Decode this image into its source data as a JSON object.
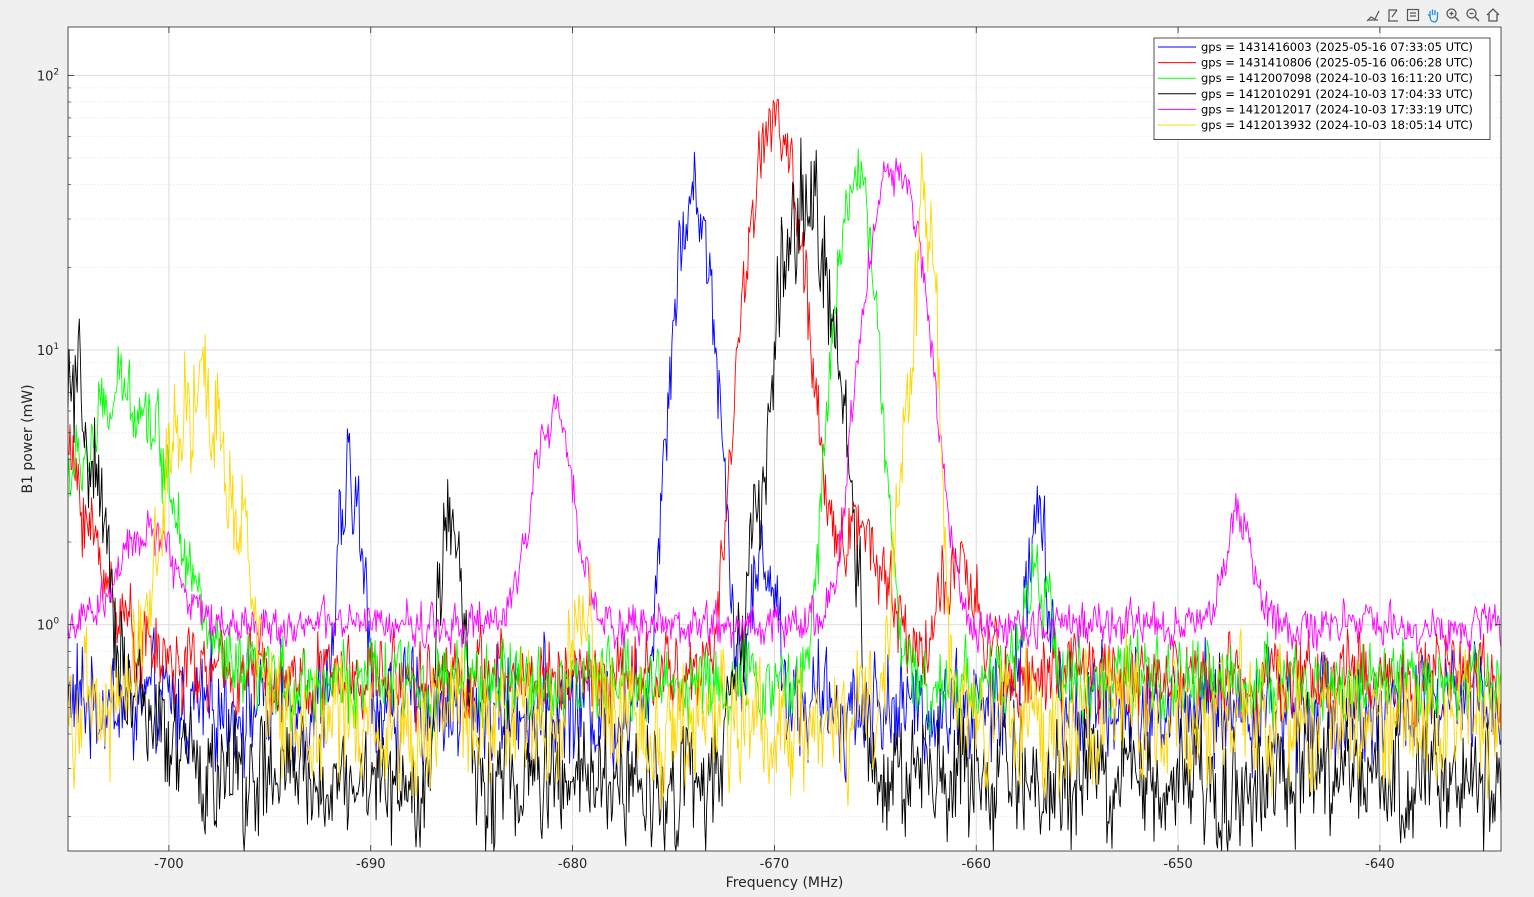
{
  "toolbar": {
    "icons": [
      "brush-icon",
      "datatip-icon",
      "legend-icon",
      "pan-hand-icon",
      "zoom-in-icon",
      "zoom-out-icon",
      "home-icon"
    ]
  },
  "chart_data": {
    "type": "line",
    "xlabel": "Frequency (MHz)",
    "ylabel": "B1 power (mW)",
    "xlim": [
      -705,
      -634
    ],
    "ylim": [
      0.15,
      150
    ],
    "yscale": "log",
    "grid": true,
    "minor_grid_y": true,
    "legend_placement": "top-right",
    "xticks": [
      -700,
      -690,
      -680,
      -670,
      -660,
      -650,
      -640
    ],
    "xtick_labels": [
      "-700",
      "-690",
      "-680",
      "-670",
      "-660",
      "-650",
      "-640"
    ],
    "yticks": [
      1,
      10,
      100
    ],
    "ytick_labels": [
      {
        "base": "10",
        "exp": "0"
      },
      {
        "base": "10",
        "exp": "1"
      },
      {
        "base": "10",
        "exp": "2"
      }
    ],
    "series": [
      {
        "name": "gps = 1431416003 (2025-05-16 07:33:05 UTC)",
        "color": "#0000ff",
        "baseline": 0.5,
        "noise": 0.3,
        "peaks": [
          [
            -691,
            3.5,
            0.45
          ],
          [
            -674,
            40,
            0.7
          ],
          [
            -670.5,
            2.0,
            0.5
          ],
          [
            -657,
            2.5,
            0.45
          ]
        ],
        "start": 0.55
      },
      {
        "name": "gps = 1431410806 (2025-05-16 06:06:28 UTC)",
        "color": "#ff0000",
        "baseline": 0.65,
        "noise": 0.22,
        "peaks": [
          [
            -670,
            75,
            0.9
          ],
          [
            -666,
            2.5,
            1.3
          ],
          [
            -661,
            1.6,
            0.9
          ]
        ],
        "start": 4.3
      },
      {
        "name": "gps = 1412007098 (2024-10-03 16:11:20 UTC)",
        "color": "#00ff00",
        "baseline": 0.62,
        "noise": 0.22,
        "peaks": [
          [
            -702,
            7.5,
            1.6
          ],
          [
            -666,
            48,
            0.7
          ],
          [
            -657,
            1.5,
            0.6
          ]
        ],
        "start": 2.5
      },
      {
        "name": "gps = 1412010291 (2024-10-03 17:04:33 UTC)",
        "color": "#000000",
        "baseline": 0.27,
        "noise": 0.35,
        "peaks": [
          [
            -686,
            2.9,
            0.4
          ],
          [
            -668.5,
            38,
            0.9
          ],
          [
            -666.5,
            4.0,
            0.4
          ],
          [
            -671,
            1.5,
            0.6
          ],
          [
            -704.5,
            4.0,
            0.7
          ]
        ],
        "start": 4.1
      },
      {
        "name": "gps = 1412012017 (2024-10-03 17:33:19 UTC)",
        "color": "#ff00ff",
        "baseline": 1.0,
        "noise": 0.12,
        "peaks": [
          [
            -681,
            6.3,
            0.8
          ],
          [
            -664,
            52,
            1.0
          ],
          [
            -647,
            2.6,
            0.6
          ],
          [
            -701,
            2.3,
            1.2
          ]
        ],
        "start": 1.0
      },
      {
        "name": "gps = 1412013932 (2024-10-03 18:05:14 UTC)",
        "color": "#ffd700",
        "baseline": 0.45,
        "noise": 0.35,
        "peaks": [
          [
            -698.5,
            6.8,
            1.3
          ],
          [
            -662.5,
            32,
            0.4
          ],
          [
            -679.5,
            1.4,
            0.4
          ],
          [
            -663.5,
            4.0,
            0.4
          ]
        ],
        "start": 0.5
      }
    ]
  }
}
